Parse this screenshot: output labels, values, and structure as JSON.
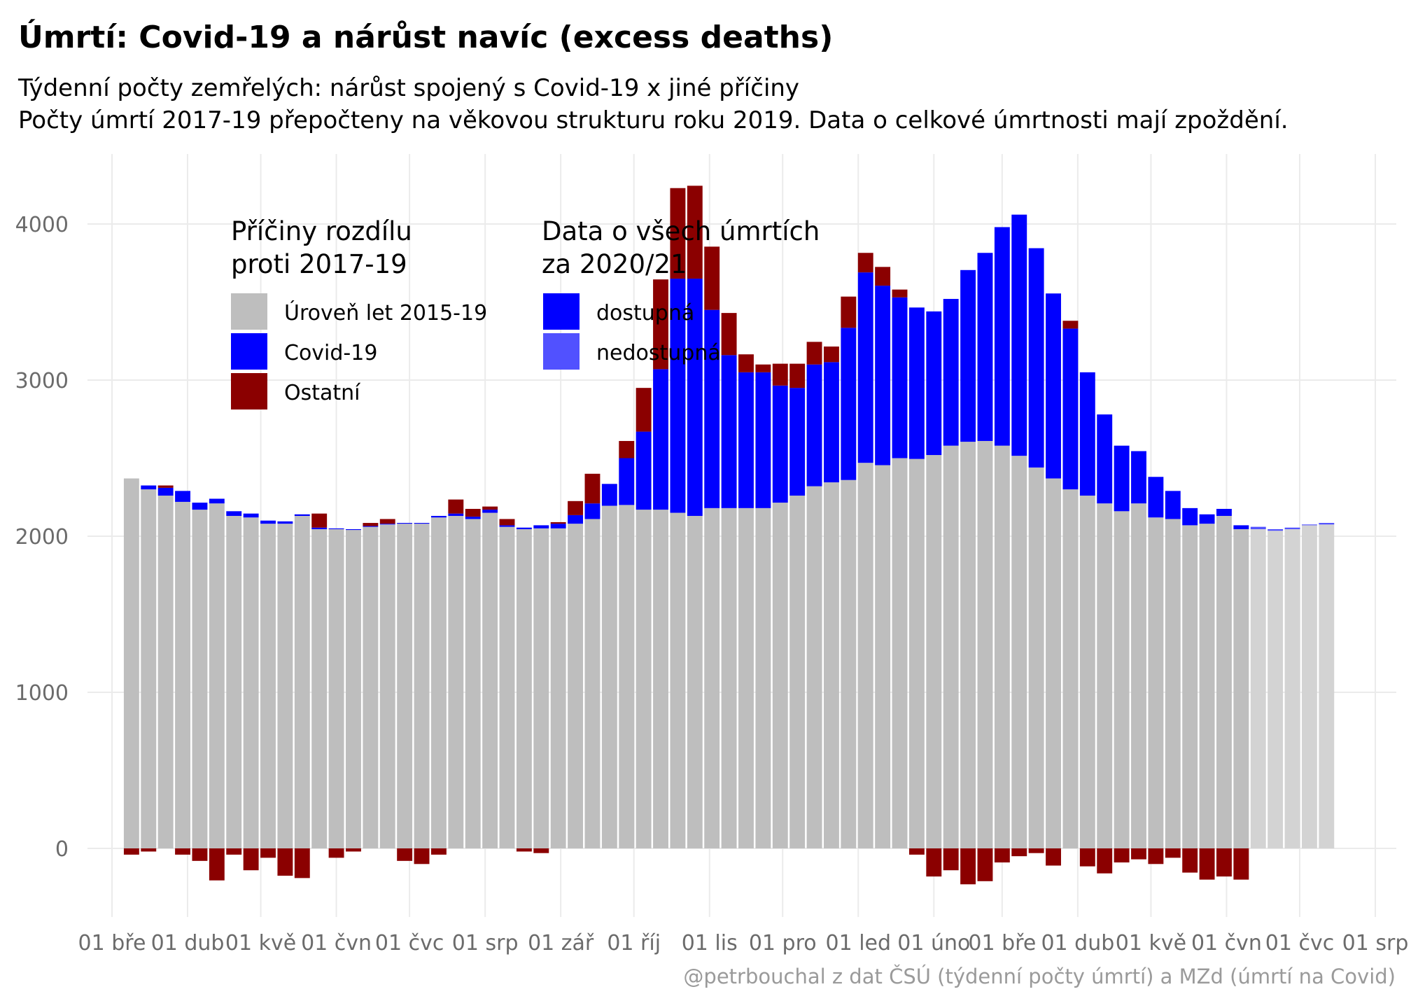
{
  "chart_data": {
    "type": "bar",
    "stacked": true,
    "title": "Úmrtí: Covid-19 a nárůst navíc (excess deaths)",
    "subtitle_line1": "Týdenní počty zemřelých: nárůst spojený s Covid-19 x jiné příčiny",
    "subtitle_line2": "Počty úmrtí 2017-19 přepočteny na věkovou strukturu roku 2019. Data o celkové úmrtnosti mají zpoždění.",
    "caption": "@petrbouchal z dat ČSÚ (týdenní počty úmrtí) a MZd (úmrtí na Covid)",
    "xlabel": "",
    "ylabel": "",
    "ylim": [
      -450,
      4550
    ],
    "y_ticks": [
      0,
      1000,
      2000,
      3000,
      4000
    ],
    "x_ticks": [
      {
        "label": "01 bře",
        "date": "2020-03-01"
      },
      {
        "label": "01 dub",
        "date": "2020-04-01"
      },
      {
        "label": "01 kvě",
        "date": "2020-05-01"
      },
      {
        "label": "01 čvn",
        "date": "2020-06-01"
      },
      {
        "label": "01 čvc",
        "date": "2020-07-01"
      },
      {
        "label": "01 srp",
        "date": "2020-08-01"
      },
      {
        "label": "01 zář",
        "date": "2020-09-01"
      },
      {
        "label": "01 říj",
        "date": "2020-10-01"
      },
      {
        "label": "01 lis",
        "date": "2020-11-01"
      },
      {
        "label": "01 pro",
        "date": "2020-12-01"
      },
      {
        "label": "01 led",
        "date": "2021-01-01"
      },
      {
        "label": "01 úno",
        "date": "2021-02-01"
      },
      {
        "label": "01 bře",
        "date": "2021-03-01"
      },
      {
        "label": "01 dub",
        "date": "2021-04-01"
      },
      {
        "label": "01 kvě",
        "date": "2021-05-01"
      },
      {
        "label": "01 čvn",
        "date": "2021-06-01"
      },
      {
        "label": "01 čvc",
        "date": "2021-07-01"
      },
      {
        "label": "01 srp",
        "date": "2021-08-01"
      }
    ],
    "grid": true,
    "colors": {
      "baseline": "#bebebe",
      "baseline_unavailable": "#d3d3d3",
      "covid": "#0000ff",
      "covid_unavailable": "#5151ff",
      "other": "#8b0000",
      "gridline": "#ebebeb"
    },
    "legend": {
      "position": "top-left inside plot",
      "groups": [
        {
          "title_line1": "Příčiny rozdílu",
          "title_line2": "proti 2017-19",
          "items": [
            {
              "label": "Úroveň let 2015-19",
              "color": "#bebebe"
            },
            {
              "label": "Covid-19",
              "color": "#0000ff"
            },
            {
              "label": "Ostatní",
              "color": "#8b0000"
            }
          ]
        },
        {
          "title_line1": "Data o všech úmrtích",
          "title_line2": "za 2020/21",
          "items": [
            {
              "label": "dostupná",
              "color": "#0000ff"
            },
            {
              "label": "nedostupná",
              "color": "#5151ff"
            }
          ]
        }
      ]
    },
    "series_names": [
      "Úroveň let 2015-19",
      "Covid-19",
      "Ostatní"
    ],
    "weeks": [
      {
        "week_start": "2020-03-09",
        "baseline": 2370,
        "covid": 0,
        "other": -40,
        "available": true
      },
      {
        "week_start": "2020-03-16",
        "baseline": 2300,
        "covid": 25,
        "other": -20,
        "available": true
      },
      {
        "week_start": "2020-03-23",
        "baseline": 2260,
        "covid": 50,
        "other": 15,
        "available": true
      },
      {
        "week_start": "2020-03-30",
        "baseline": 2220,
        "covid": 70,
        "other": -40,
        "available": true
      },
      {
        "week_start": "2020-04-06",
        "baseline": 2170,
        "covid": 45,
        "other": -80,
        "available": true
      },
      {
        "week_start": "2020-04-13",
        "baseline": 2210,
        "covid": 30,
        "other": -205,
        "available": true
      },
      {
        "week_start": "2020-04-20",
        "baseline": 2130,
        "covid": 30,
        "other": -40,
        "available": true
      },
      {
        "week_start": "2020-04-27",
        "baseline": 2120,
        "covid": 25,
        "other": -140,
        "available": true
      },
      {
        "week_start": "2020-05-04",
        "baseline": 2080,
        "covid": 20,
        "other": -60,
        "available": true
      },
      {
        "week_start": "2020-05-11",
        "baseline": 2080,
        "covid": 15,
        "other": -175,
        "available": true
      },
      {
        "week_start": "2020-05-18",
        "baseline": 2130,
        "covid": 10,
        "other": -190,
        "available": true
      },
      {
        "week_start": "2020-05-25",
        "baseline": 2045,
        "covid": 10,
        "other": 90,
        "available": true
      },
      {
        "week_start": "2020-06-01",
        "baseline": 2045,
        "covid": 5,
        "other": -60,
        "available": true
      },
      {
        "week_start": "2020-06-08",
        "baseline": 2040,
        "covid": 5,
        "other": -20,
        "available": true
      },
      {
        "week_start": "2020-06-15",
        "baseline": 2060,
        "covid": 5,
        "other": 20,
        "available": true
      },
      {
        "week_start": "2020-06-22",
        "baseline": 2075,
        "covid": 5,
        "other": 30,
        "available": true
      },
      {
        "week_start": "2020-06-29",
        "baseline": 2080,
        "covid": 5,
        "other": -80,
        "available": true
      },
      {
        "week_start": "2020-07-06",
        "baseline": 2080,
        "covid": 5,
        "other": -100,
        "available": true
      },
      {
        "week_start": "2020-07-13",
        "baseline": 2120,
        "covid": 10,
        "other": -40,
        "available": true
      },
      {
        "week_start": "2020-07-20",
        "baseline": 2130,
        "covid": 15,
        "other": 90,
        "available": true
      },
      {
        "week_start": "2020-07-27",
        "baseline": 2110,
        "covid": 15,
        "other": 50,
        "available": true
      },
      {
        "week_start": "2020-08-03",
        "baseline": 2150,
        "covid": 20,
        "other": 20,
        "available": true
      },
      {
        "week_start": "2020-08-10",
        "baseline": 2060,
        "covid": 10,
        "other": 40,
        "available": true
      },
      {
        "week_start": "2020-08-17",
        "baseline": 2045,
        "covid": 10,
        "other": -20,
        "available": true
      },
      {
        "week_start": "2020-08-24",
        "baseline": 2050,
        "covid": 20,
        "other": -30,
        "available": true
      },
      {
        "week_start": "2020-08-31",
        "baseline": 2050,
        "covid": 30,
        "other": 10,
        "available": true
      },
      {
        "week_start": "2020-09-07",
        "baseline": 2080,
        "covid": 55,
        "other": 90,
        "available": true
      },
      {
        "week_start": "2020-09-14",
        "baseline": 2110,
        "covid": 100,
        "other": 190,
        "available": true
      },
      {
        "week_start": "2020-09-21",
        "baseline": 2195,
        "covid": 140,
        "other": 0,
        "available": true
      },
      {
        "week_start": "2020-09-28",
        "baseline": 2200,
        "covid": 300,
        "other": 110,
        "available": true
      },
      {
        "week_start": "2020-10-05",
        "baseline": 2170,
        "covid": 500,
        "other": 280,
        "available": true
      },
      {
        "week_start": "2020-10-12",
        "baseline": 2170,
        "covid": 900,
        "other": 575,
        "available": true
      },
      {
        "week_start": "2020-10-19",
        "baseline": 2150,
        "covid": 1500,
        "other": 580,
        "available": true
      },
      {
        "week_start": "2020-10-26",
        "baseline": 2130,
        "covid": 1520,
        "other": 595,
        "available": true
      },
      {
        "week_start": "2020-11-02",
        "baseline": 2180,
        "covid": 1270,
        "other": 405,
        "available": true
      },
      {
        "week_start": "2020-11-09",
        "baseline": 2180,
        "covid": 980,
        "other": 270,
        "available": true
      },
      {
        "week_start": "2020-11-16",
        "baseline": 2180,
        "covid": 870,
        "other": 115,
        "available": true
      },
      {
        "week_start": "2020-11-23",
        "baseline": 2180,
        "covid": 870,
        "other": 50,
        "available": true
      },
      {
        "week_start": "2020-11-30",
        "baseline": 2215,
        "covid": 750,
        "other": 140,
        "available": true
      },
      {
        "week_start": "2020-12-07",
        "baseline": 2260,
        "covid": 690,
        "other": 155,
        "available": true
      },
      {
        "week_start": "2020-12-14",
        "baseline": 2320,
        "covid": 780,
        "other": 145,
        "available": true
      },
      {
        "week_start": "2020-12-21",
        "baseline": 2345,
        "covid": 770,
        "other": 100,
        "available": true
      },
      {
        "week_start": "2020-12-28",
        "baseline": 2360,
        "covid": 975,
        "other": 200,
        "available": true
      },
      {
        "week_start": "2021-01-04",
        "baseline": 2470,
        "covid": 1220,
        "other": 125,
        "available": true
      },
      {
        "week_start": "2021-01-11",
        "baseline": 2455,
        "covid": 1150,
        "other": 120,
        "available": true
      },
      {
        "week_start": "2021-01-18",
        "baseline": 2500,
        "covid": 1030,
        "other": 50,
        "available": true
      },
      {
        "week_start": "2021-01-25",
        "baseline": 2495,
        "covid": 970,
        "other": -40,
        "available": true
      },
      {
        "week_start": "2021-02-01",
        "baseline": 2520,
        "covid": 920,
        "other": -180,
        "available": true
      },
      {
        "week_start": "2021-02-08",
        "baseline": 2580,
        "covid": 940,
        "other": -140,
        "available": true
      },
      {
        "week_start": "2021-02-15",
        "baseline": 2605,
        "covid": 1100,
        "other": -230,
        "available": true
      },
      {
        "week_start": "2021-02-22",
        "baseline": 2610,
        "covid": 1205,
        "other": -210,
        "available": true
      },
      {
        "week_start": "2021-03-01",
        "baseline": 2580,
        "covid": 1400,
        "other": -90,
        "available": true
      },
      {
        "week_start": "2021-03-08",
        "baseline": 2515,
        "covid": 1545,
        "other": -50,
        "available": true
      },
      {
        "week_start": "2021-03-15",
        "baseline": 2440,
        "covid": 1405,
        "other": -30,
        "available": true
      },
      {
        "week_start": "2021-03-22",
        "baseline": 2370,
        "covid": 1185,
        "other": -110,
        "available": true
      },
      {
        "week_start": "2021-03-29",
        "baseline": 2300,
        "covid": 1030,
        "other": 50,
        "available": true
      },
      {
        "week_start": "2021-04-05",
        "baseline": 2260,
        "covid": 790,
        "other": -115,
        "available": true
      },
      {
        "week_start": "2021-04-12",
        "baseline": 2210,
        "covid": 570,
        "other": -160,
        "available": true
      },
      {
        "week_start": "2021-04-19",
        "baseline": 2160,
        "covid": 420,
        "other": -90,
        "available": true
      },
      {
        "week_start": "2021-04-26",
        "baseline": 2210,
        "covid": 335,
        "other": -70,
        "available": true
      },
      {
        "week_start": "2021-05-03",
        "baseline": 2120,
        "covid": 260,
        "other": -100,
        "available": true
      },
      {
        "week_start": "2021-05-10",
        "baseline": 2110,
        "covid": 180,
        "other": -60,
        "available": true
      },
      {
        "week_start": "2021-05-17",
        "baseline": 2070,
        "covid": 110,
        "other": -155,
        "available": true
      },
      {
        "week_start": "2021-05-24",
        "baseline": 2080,
        "covid": 60,
        "other": -200,
        "available": true
      },
      {
        "week_start": "2021-05-31",
        "baseline": 2130,
        "covid": 45,
        "other": -180,
        "available": true
      },
      {
        "week_start": "2021-06-07",
        "baseline": 2045,
        "covid": 25,
        "other": -200,
        "available": true
      },
      {
        "week_start": "2021-06-14",
        "baseline": 2045,
        "covid": 15,
        "other": 0,
        "available": false
      },
      {
        "week_start": "2021-06-21",
        "baseline": 2035,
        "covid": 10,
        "other": 0,
        "available": false
      },
      {
        "week_start": "2021-06-28",
        "baseline": 2045,
        "covid": 10,
        "other": 0,
        "available": false
      },
      {
        "week_start": "2021-07-05",
        "baseline": 2070,
        "covid": 5,
        "other": 0,
        "available": false
      },
      {
        "week_start": "2021-07-12",
        "baseline": 2075,
        "covid": 10,
        "other": 0,
        "available": false
      }
    ]
  }
}
